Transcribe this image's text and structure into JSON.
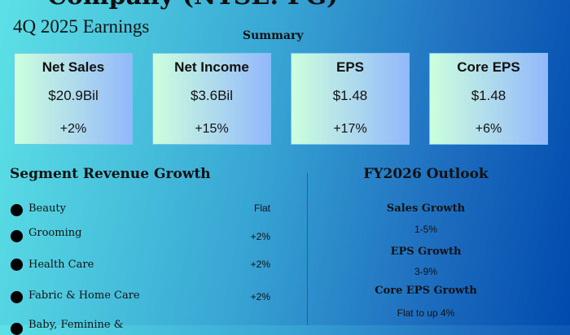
{
  "header": {
    "title": "Company (NYSE: PG)",
    "subtitle": "4Q 2025 Earnings",
    "summary_label": "Summary"
  },
  "cards": [
    {
      "title": "Net Sales",
      "value": "$20.9Bil",
      "change": "+2%"
    },
    {
      "title": "Net Income",
      "value": "$3.6Bil",
      "change": "+15%"
    },
    {
      "title": "EPS",
      "value": "$1.48",
      "change": "+17%"
    },
    {
      "title": "Core EPS",
      "value": "$1.48",
      "change": "+6%"
    }
  ],
  "segments": {
    "heading": "Segment Revenue Growth",
    "items": [
      {
        "label": "Beauty",
        "value": "Flat"
      },
      {
        "label": "Grooming",
        "value": "+2%"
      },
      {
        "label": "Health Care",
        "value": "+2%"
      },
      {
        "label": "Fabric & Home Care",
        "value": "+2%"
      },
      {
        "label": "Baby, Feminine &",
        "value": ""
      }
    ]
  },
  "outlook": {
    "heading": "FY2026 Outlook",
    "items": [
      {
        "label": "Sales Growth",
        "value": "1-5%"
      },
      {
        "label": "EPS Growth",
        "value": "3-9%"
      },
      {
        "label": "Core EPS Growth",
        "value": "Flat to up 4%"
      }
    ]
  }
}
